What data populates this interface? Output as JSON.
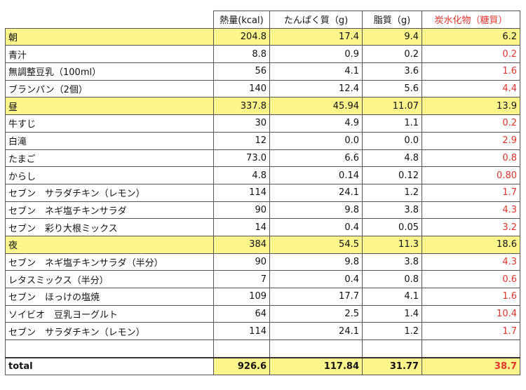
{
  "headers": [
    "",
    "熱量(kcal)",
    "たんぱく質（g)",
    "脂質（g)",
    "炭水化物（糖質）"
  ],
  "rows": [
    {
      "type": "meal",
      "label": "朝",
      "cal": "204.8",
      "protein": "17.4",
      "fat": "9.4",
      "carb": "6.2"
    },
    {
      "type": "item",
      "label": "青汁",
      "cal": "8.8",
      "protein": "0.9",
      "fat": "0.2",
      "carb": "0.2"
    },
    {
      "type": "item",
      "label": "無調整豆乳（100ml）",
      "cal": "56",
      "protein": "4.1",
      "fat": "3.6",
      "carb": "1.6"
    },
    {
      "type": "item",
      "label": "ブランパン（2個）",
      "cal": "140",
      "protein": "12.4",
      "fat": "5.6",
      "carb": "4.4"
    },
    {
      "type": "meal",
      "label": "昼",
      "cal": "337.8",
      "protein": "45.94",
      "fat": "11.07",
      "carb": "13.9"
    },
    {
      "type": "item",
      "label": "牛すじ",
      "cal": "30",
      "protein": "4.9",
      "fat": "1.1",
      "carb": "0.2"
    },
    {
      "type": "item",
      "label": "白滝",
      "cal": "12",
      "protein": "0.0",
      "fat": "0.0",
      "carb": "2.9"
    },
    {
      "type": "item",
      "label": "たまご",
      "cal": "73.0",
      "protein": "6.6",
      "fat": "4.8",
      "carb": "0.8"
    },
    {
      "type": "item",
      "label": "からし",
      "cal": "4.8",
      "protein": "0.14",
      "fat": "0.12",
      "carb": "0.80"
    },
    {
      "type": "item",
      "label": "セブン　サラダチキン（レモン）",
      "cal": "114",
      "protein": "24.1",
      "fat": "1.2",
      "carb": "1.7"
    },
    {
      "type": "item",
      "label": "セブン　ネギ塩チキンサラダ",
      "cal": "90",
      "protein": "9.8",
      "fat": "3.8",
      "carb": "4.3"
    },
    {
      "type": "item",
      "label": "セブン　彩り大根ミックス",
      "cal": "14",
      "protein": "0.4",
      "fat": "0.05",
      "carb": "3.2"
    },
    {
      "type": "meal",
      "label": "夜",
      "cal": "384",
      "protein": "54.5",
      "fat": "11.3",
      "carb": "18.6"
    },
    {
      "type": "item",
      "label": "セブン　ネギ塩チキンサラダ（半分）",
      "cal": "90",
      "protein": "9.8",
      "fat": "3.8",
      "carb": "4.3"
    },
    {
      "type": "item",
      "label": "レタスミックス（半分）",
      "cal": "7",
      "protein": "0.4",
      "fat": "0.8",
      "carb": "0.6"
    },
    {
      "type": "item",
      "label": "セブン　ほっけの塩焼",
      "cal": "109",
      "protein": "17.7",
      "fat": "4.1",
      "carb": "1.6"
    },
    {
      "type": "item",
      "label": "ソイビオ　豆乳ヨーグルト",
      "cal": "64",
      "protein": "2.5",
      "fat": "1.4",
      "carb": "10.4"
    },
    {
      "type": "item",
      "label": "セブン　サラダチキン（レモン）",
      "cal": "114",
      "protein": "24.1",
      "fat": "1.2",
      "carb": "1.7"
    },
    {
      "type": "blank",
      "label": "",
      "cal": "",
      "protein": "",
      "fat": "",
      "carb": ""
    },
    {
      "type": "total",
      "label": "total",
      "cal": "926.6",
      "protein": "117.84",
      "fat": "31.77",
      "carb": "38.7"
    }
  ],
  "colors": {
    "meal_highlight": "#fbf58c",
    "carb_text": "#e0342c",
    "grid": "#555555"
  }
}
